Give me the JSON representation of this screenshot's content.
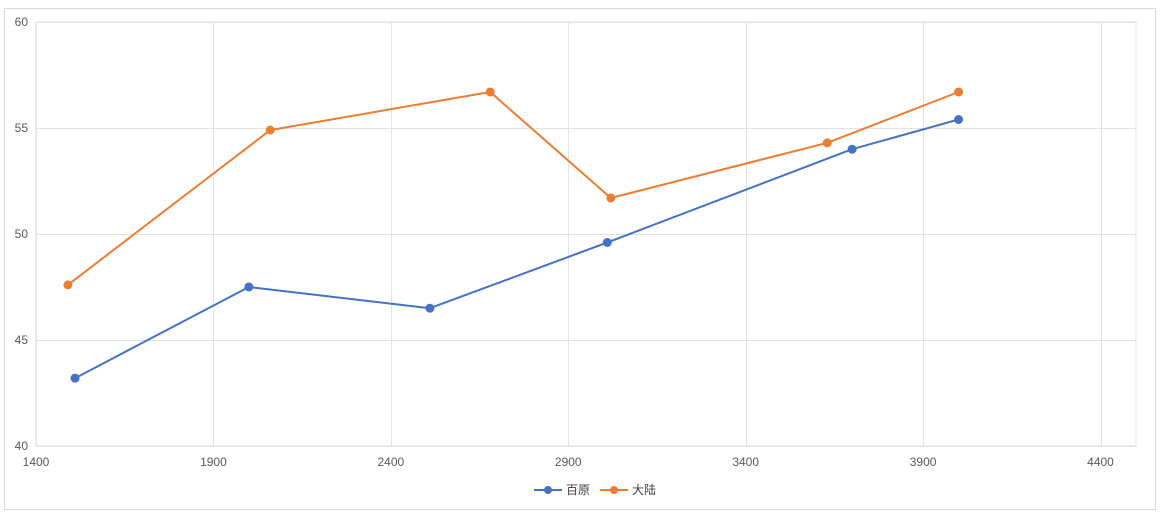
{
  "chart_data": {
    "type": "line",
    "title": "",
    "xlabel": "",
    "ylabel": "",
    "xlim": [
      1400,
      4500
    ],
    "ylim": [
      40,
      60
    ],
    "xticks": [
      1400,
      1900,
      2400,
      2900,
      3400,
      3900,
      4400
    ],
    "yticks": [
      40,
      45,
      50,
      55,
      60
    ],
    "grid": true,
    "legend_position": "bottom",
    "series": [
      {
        "name": "百原",
        "color": "#4472c4",
        "points": [
          {
            "x": 1510,
            "y": 43.2
          },
          {
            "x": 2000,
            "y": 47.5
          },
          {
            "x": 2510,
            "y": 46.5
          },
          {
            "x": 3010,
            "y": 49.6
          },
          {
            "x": 3700,
            "y": 54.0
          },
          {
            "x": 4000,
            "y": 55.4
          }
        ]
      },
      {
        "name": "大陆",
        "color": "#ed7d31",
        "points": [
          {
            "x": 1490,
            "y": 47.6
          },
          {
            "x": 2060,
            "y": 54.9
          },
          {
            "x": 2680,
            "y": 56.7
          },
          {
            "x": 3020,
            "y": 51.7
          },
          {
            "x": 3630,
            "y": 54.3
          },
          {
            "x": 4000,
            "y": 56.7
          }
        ]
      }
    ]
  }
}
